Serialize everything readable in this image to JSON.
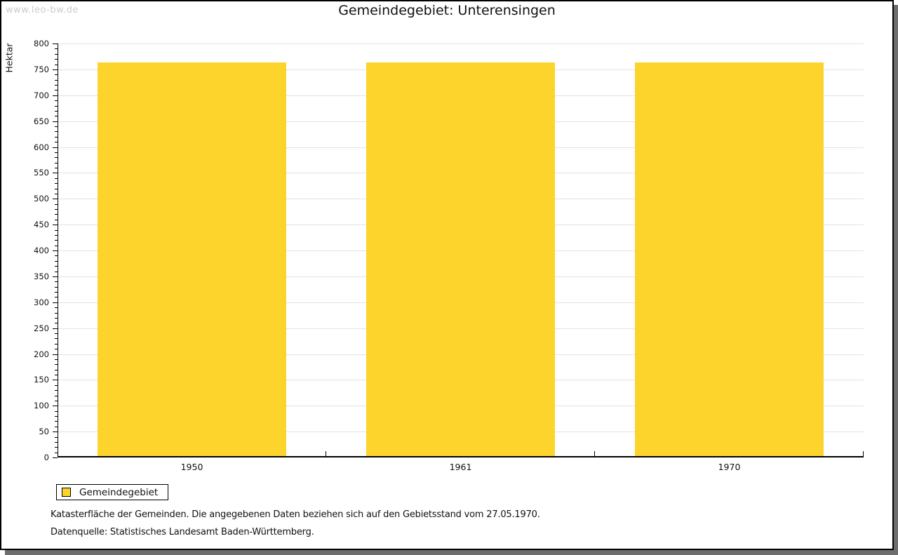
{
  "watermark": "www.leo-bw.de",
  "chart_data": {
    "type": "bar",
    "title": "Gemeindegebiet: Unterensingen",
    "ylabel": "Hektar",
    "xlabel": "",
    "categories": [
      "1950",
      "1961",
      "1970"
    ],
    "series": [
      {
        "name": "Gemeindegebiet",
        "values": [
          764,
          764,
          764
        ]
      }
    ],
    "ylim": [
      0,
      800
    ],
    "y_major_step": 50,
    "y_minor_step": 10,
    "grid": "horizontal-major",
    "legend_position": "bottom-left",
    "bar_color": "#FDD42C"
  },
  "footnotes": [
    "Katasterfläche der Gemeinden. Die angegebenen Daten beziehen sich auf den Gebietsstand vom 27.05.1970.",
    "Datenquelle: Statistisches Landesamt Baden-Württemberg."
  ]
}
